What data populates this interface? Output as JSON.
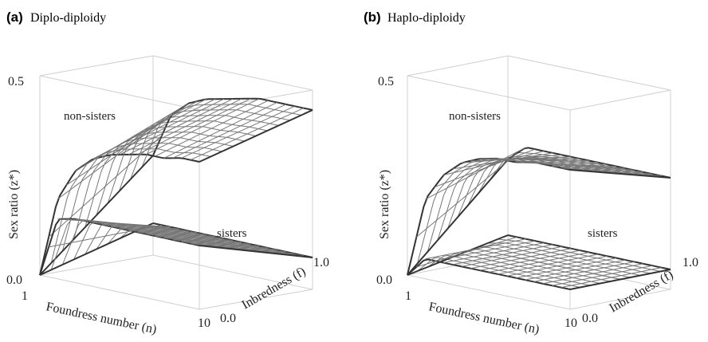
{
  "chart_data": [
    {
      "type": "surface",
      "panel_letter": "(a)",
      "title": "Diplo-diploidy",
      "xlabel": "Foundress number (n)",
      "ylabel": "Inbredness (f)",
      "zlabel": "Sex ratio (z*)",
      "x_ticks": [
        "1",
        "10"
      ],
      "y_ticks": [
        "0.0",
        "1.0"
      ],
      "z_ticks": [
        "0.0",
        "0.5"
      ],
      "xlim": [
        1,
        10
      ],
      "ylim": [
        0,
        1
      ],
      "zlim": [
        0,
        0.5
      ],
      "series": [
        {
          "name": "non-sisters",
          "edge_f0": [
            0.0,
            0.2,
            0.28,
            0.32,
            0.34,
            0.35,
            0.36,
            0.36,
            0.37,
            0.37
          ],
          "edge_f1": [
            0.25,
            0.36,
            0.4,
            0.42,
            0.43,
            0.44,
            0.45,
            0.45,
            0.45,
            0.45
          ]
        },
        {
          "name": "sisters",
          "edge_f0": [
            0.0,
            0.15,
            0.16,
            0.16,
            0.16,
            0.16,
            0.16,
            0.16,
            0.16,
            0.16
          ],
          "edge_f1": [
            0.08,
            0.08,
            0.08,
            0.08,
            0.08,
            0.08,
            0.08,
            0.08,
            0.08,
            0.08
          ]
        }
      ]
    },
    {
      "type": "surface",
      "panel_letter": "(b)",
      "title": "Haplo-diploidy",
      "xlabel": "Foundress number (n)",
      "ylabel": "Inbredness (f)",
      "zlabel": "Sex ratio (z*)",
      "x_ticks": [
        "1",
        "10"
      ],
      "y_ticks": [
        "0.0",
        "1.0"
      ],
      "z_ticks": [
        "0.0",
        "0.5"
      ],
      "xlim": [
        1,
        10
      ],
      "ylim": [
        0,
        1
      ],
      "zlim": [
        0,
        0.5
      ],
      "series": [
        {
          "name": "non-sisters",
          "edge_f0": [
            0.0,
            0.2,
            0.27,
            0.31,
            0.33,
            0.34,
            0.34,
            0.35,
            0.35,
            0.35
          ],
          "edge_f1": [
            0.24,
            0.28,
            0.28,
            0.28,
            0.28,
            0.28,
            0.28,
            0.28,
            0.28,
            0.28
          ]
        },
        {
          "name": "sisters",
          "edge_f0": [
            0.0,
            0.05,
            0.05,
            0.05,
            0.05,
            0.05,
            0.05,
            0.05,
            0.05,
            0.05
          ],
          "edge_f1": [
            0.05,
            0.05,
            0.05,
            0.05,
            0.05,
            0.05,
            0.05,
            0.05,
            0.05,
            0.05
          ]
        }
      ]
    }
  ]
}
